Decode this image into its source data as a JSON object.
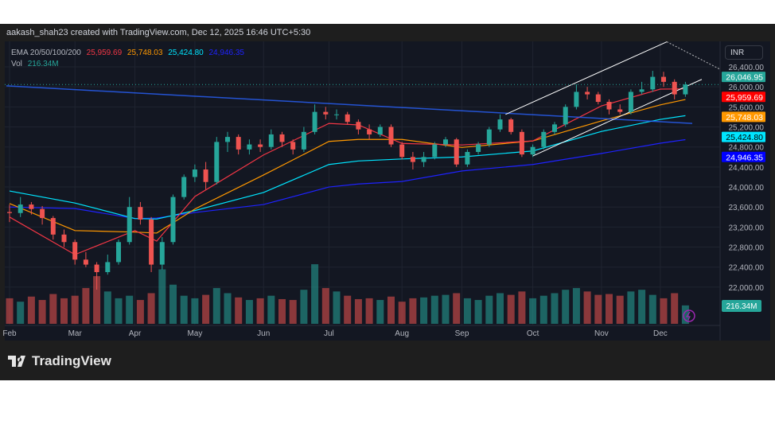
{
  "header": {
    "attribution": "aakash_shah23 created with TradingView.com, Dec 12, 2025 16:46 UTC+5:30"
  },
  "legend": {
    "ema_label": "EMA 20/50/100/200",
    "ema20": "25,959.69",
    "ema50": "25,748.03",
    "ema100": "25,424.80",
    "ema200": "24,946.35",
    "vol_label": "Vol",
    "vol_value": "216.34M"
  },
  "currency": "INR",
  "brand": "TradingView",
  "colors": {
    "up": "#26a69a",
    "down": "#ef5350",
    "ema20": "#f23645",
    "ema50": "#ff9800",
    "ema100": "#00e5ff",
    "ema200": "#1e22ff",
    "trendline": "#2962ff",
    "channel": "#ffffff",
    "background": "#131722"
  },
  "chart_data": {
    "type": "candlestick",
    "ylim": [
      21800,
      26700
    ],
    "y_ticks": [
      26400,
      26000,
      25600,
      25200,
      24800,
      24400,
      24000,
      23600,
      23200,
      22800,
      22400,
      22000
    ],
    "y_tick_labels": [
      "26,400.00",
      "26,000.00",
      "25,600.00",
      "25,200.00",
      "24,800.00",
      "24,400.00",
      "24,000.00",
      "23,600.00",
      "23,200.00",
      "22,800.00",
      "22,400.00",
      "22,000.00"
    ],
    "x_ticks": [
      {
        "label": "Feb",
        "bar": 0
      },
      {
        "label": "Mar",
        "bar": 6
      },
      {
        "label": "Apr",
        "bar": 11.5
      },
      {
        "label": "May",
        "bar": 17
      },
      {
        "label": "Jun",
        "bar": 23.3
      },
      {
        "label": "Jul",
        "bar": 29.3
      },
      {
        "label": "Aug",
        "bar": 36
      },
      {
        "label": "Sep",
        "bar": 41.5
      },
      {
        "label": "Oct",
        "bar": 48
      },
      {
        "label": "Nov",
        "bar": 54.3
      },
      {
        "label": "Dec",
        "bar": 59.7
      }
    ],
    "ohlc": [
      [
        23500,
        23650,
        23300,
        23480
      ],
      [
        23480,
        23800,
        23400,
        23650
      ],
      [
        23650,
        23700,
        23450,
        23560
      ],
      [
        23560,
        23620,
        23250,
        23380
      ],
      [
        23380,
        23420,
        22950,
        23050
      ],
      [
        23050,
        23150,
        22800,
        22900
      ],
      [
        22900,
        22950,
        22450,
        22550
      ],
      [
        22550,
        22700,
        22400,
        22450
      ],
      [
        22450,
        22500,
        21950,
        22300
      ],
      [
        22300,
        22650,
        22250,
        22500
      ],
      [
        22500,
        22950,
        22450,
        22900
      ],
      [
        22900,
        23800,
        22850,
        23600
      ],
      [
        23600,
        23700,
        23250,
        23350
      ],
      [
        23350,
        23400,
        22300,
        22450
      ],
      [
        22450,
        23000,
        22350,
        22900
      ],
      [
        22900,
        23850,
        22850,
        23800
      ],
      [
        23800,
        24250,
        23750,
        24200
      ],
      [
        24200,
        24450,
        24100,
        24350
      ],
      [
        24350,
        24500,
        23950,
        24100
      ],
      [
        24100,
        25000,
        24050,
        24900
      ],
      [
        24900,
        25100,
        24700,
        25000
      ],
      [
        25000,
        25050,
        24650,
        24750
      ],
      [
        24750,
        24950,
        24650,
        24850
      ],
      [
        24850,
        24950,
        24700,
        24800
      ],
      [
        24800,
        25150,
        24750,
        25050
      ],
      [
        25050,
        25100,
        24800,
        24900
      ],
      [
        24900,
        24950,
        24650,
        24750
      ],
      [
        24750,
        25200,
        24700,
        25100
      ],
      [
        25100,
        25650,
        25050,
        25500
      ],
      [
        25500,
        25600,
        25350,
        25450
      ],
      [
        25450,
        25550,
        25350,
        25450
      ],
      [
        25450,
        25500,
        25250,
        25300
      ],
      [
        25300,
        25350,
        25050,
        25150
      ],
      [
        25150,
        25250,
        24950,
        25050
      ],
      [
        25050,
        25250,
        25000,
        25200
      ],
      [
        25200,
        25250,
        24800,
        24850
      ],
      [
        24850,
        24900,
        24550,
        24600
      ],
      [
        24600,
        24700,
        24350,
        24500
      ],
      [
        24500,
        24700,
        24400,
        24600
      ],
      [
        24600,
        24900,
        24550,
        24850
      ],
      [
        24850,
        25000,
        24800,
        24950
      ],
      [
        24950,
        24980,
        24400,
        24450
      ],
      [
        24450,
        24750,
        24400,
        24700
      ],
      [
        24700,
        24900,
        24650,
        24850
      ],
      [
        24850,
        25200,
        24800,
        25150
      ],
      [
        25150,
        25450,
        25100,
        25350
      ],
      [
        25350,
        25380,
        25050,
        25100
      ],
      [
        25100,
        25150,
        24600,
        24650
      ],
      [
        24650,
        24850,
        24600,
        24800
      ],
      [
        24800,
        25150,
        24750,
        25100
      ],
      [
        25100,
        25300,
        25050,
        25250
      ],
      [
        25250,
        25650,
        25200,
        25600
      ],
      [
        25600,
        26050,
        25550,
        25900
      ],
      [
        25900,
        26000,
        25750,
        25850
      ],
      [
        25850,
        25900,
        25650,
        25700
      ],
      [
        25700,
        25750,
        25450,
        25550
      ],
      [
        25550,
        25650,
        25450,
        25500
      ],
      [
        25500,
        25950,
        25450,
        25900
      ],
      [
        25900,
        26100,
        25850,
        25950
      ],
      [
        25950,
        26320,
        25900,
        26200
      ],
      [
        26200,
        26300,
        26000,
        26100
      ],
      [
        26100,
        26150,
        25750,
        25850
      ],
      [
        25850,
        26100,
        25800,
        26046.95
      ]
    ],
    "volume_m": [
      300,
      260,
      320,
      280,
      350,
      300,
      330,
      420,
      560,
      380,
      300,
      330,
      280,
      360,
      640,
      460,
      330,
      300,
      340,
      420,
      360,
      310,
      280,
      300,
      330,
      290,
      280,
      400,
      700,
      420,
      380,
      330,
      290,
      300,
      280,
      320,
      260,
      300,
      310,
      330,
      340,
      360,
      300,
      280,
      330,
      360,
      340,
      380,
      300,
      330,
      360,
      400,
      420,
      380,
      340,
      350,
      330,
      380,
      400,
      340,
      300,
      360,
      216.34
    ],
    "last_price": "26,046.95",
    "ema": {
      "bars": [
        0,
        6,
        11.5,
        13.5,
        17,
        23.3,
        29.3,
        32,
        36,
        41.5,
        48,
        54.3,
        59.7,
        62
      ],
      "ema20": [
        23400,
        22650,
        23130,
        22920,
        23810,
        24640,
        25270,
        25240,
        24870,
        24840,
        24920,
        25620,
        25955,
        25959.69
      ],
      "ema50": [
        23670,
        23130,
        23100,
        23080,
        23560,
        24240,
        24910,
        24950,
        24950,
        24790,
        24920,
        25320,
        25640,
        25748.03
      ],
      "ema100": [
        23920,
        23680,
        23370,
        23360,
        23530,
        23890,
        24450,
        24520,
        24560,
        24600,
        24720,
        25110,
        25350,
        25424.8
      ],
      "ema200": [
        23600,
        23570,
        23370,
        23380,
        23490,
        23650,
        24000,
        24060,
        24110,
        24320,
        24450,
        24670,
        24875,
        24946.35
      ]
    }
  }
}
